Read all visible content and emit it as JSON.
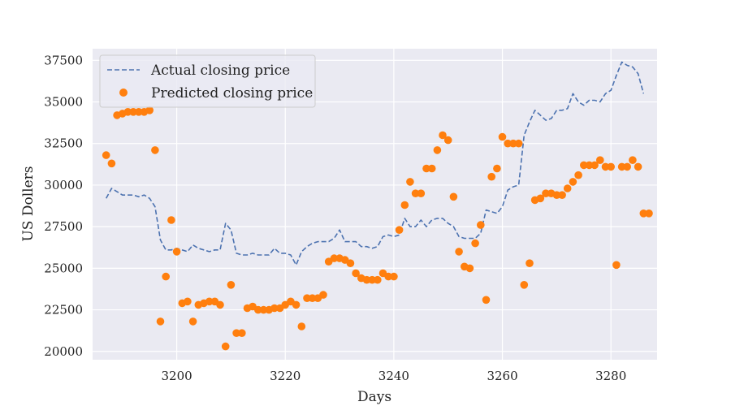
{
  "chart_data": {
    "type": "line",
    "title": "",
    "xlabel": "Days",
    "ylabel": "US Dollers",
    "xlim": [
      3184.5,
      3288.5
    ],
    "ylim": [
      19500,
      38200
    ],
    "xticks": [
      3200,
      3220,
      3240,
      3260,
      3280
    ],
    "yticks": [
      20000,
      22500,
      25000,
      27500,
      30000,
      32500,
      35000,
      37500
    ],
    "grid": true,
    "legend_position": "upper left",
    "background_color": "#eaeaf2",
    "series": [
      {
        "name": "Actual closing price",
        "style": "dashed-line",
        "color": "#4c72b0",
        "x": [
          3187,
          3188,
          3189,
          3190,
          3191,
          3192,
          3193,
          3194,
          3195,
          3196,
          3197,
          3198,
          3199,
          3200,
          3201,
          3202,
          3203,
          3204,
          3205,
          3206,
          3207,
          3208,
          3209,
          3210,
          3211,
          3212,
          3213,
          3214,
          3215,
          3216,
          3217,
          3218,
          3219,
          3220,
          3221,
          3222,
          3223,
          3224,
          3225,
          3226,
          3227,
          3228,
          3229,
          3230,
          3231,
          3232,
          3233,
          3234,
          3235,
          3236,
          3237,
          3238,
          3239,
          3240,
          3241,
          3242,
          3243,
          3244,
          3245,
          3246,
          3247,
          3248,
          3249,
          3250,
          3251,
          3252,
          3253,
          3254,
          3255,
          3256,
          3257,
          3258,
          3259,
          3260,
          3261,
          3262,
          3263,
          3264,
          3265,
          3266,
          3267,
          3268,
          3269,
          3270,
          3271,
          3272,
          3273,
          3274,
          3275,
          3276,
          3277,
          3278,
          3279,
          3280,
          3281,
          3282,
          3283,
          3284,
          3285,
          3286
        ],
        "y": [
          29200,
          29800,
          29600,
          29400,
          29400,
          29400,
          29300,
          29400,
          29200,
          28700,
          26700,
          26100,
          26100,
          26200,
          26100,
          26000,
          26400,
          26200,
          26100,
          26000,
          26100,
          26100,
          27700,
          27300,
          25900,
          25800,
          25800,
          25900,
          25800,
          25800,
          25800,
          26200,
          25900,
          25900,
          25800,
          25200,
          26000,
          26300,
          26500,
          26600,
          26600,
          26600,
          26800,
          27300,
          26600,
          26600,
          26600,
          26300,
          26300,
          26200,
          26300,
          26900,
          27000,
          26900,
          27000,
          28000,
          27500,
          27500,
          27900,
          27500,
          27900,
          28000,
          28000,
          27700,
          27500,
          26900,
          26800,
          26800,
          26800,
          27100,
          28500,
          28400,
          28300,
          28700,
          29700,
          29900,
          30000,
          33000,
          33800,
          34500,
          34200,
          33900,
          34000,
          34500,
          34500,
          34600,
          35500,
          35000,
          34800,
          35100,
          35100,
          35000,
          35500,
          35700,
          36600,
          37400,
          37200,
          37100,
          36700,
          35500
        ]
      },
      {
        "name": "Predicted closing price",
        "style": "scatter",
        "color": "#ff7f0e",
        "x": [
          3187,
          3188,
          3189,
          3190,
          3191,
          3192,
          3193,
          3194,
          3195,
          3196,
          3197,
          3198,
          3199,
          3200,
          3201,
          3202,
          3203,
          3204,
          3205,
          3206,
          3207,
          3208,
          3209,
          3210,
          3211,
          3212,
          3213,
          3214,
          3215,
          3216,
          3217,
          3218,
          3219,
          3220,
          3221,
          3222,
          3223,
          3224,
          3225,
          3226,
          3227,
          3228,
          3229,
          3230,
          3231,
          3232,
          3233,
          3234,
          3235,
          3236,
          3237,
          3238,
          3239,
          3240,
          3241,
          3242,
          3243,
          3244,
          3245,
          3246,
          3247,
          3248,
          3249,
          3250,
          3251,
          3252,
          3253,
          3254,
          3255,
          3256,
          3257,
          3258,
          3259,
          3260,
          3261,
          3262,
          3263,
          3264,
          3265,
          3266,
          3267,
          3268,
          3269,
          3270,
          3271,
          3272,
          3273,
          3274,
          3275,
          3276,
          3277,
          3278,
          3279,
          3280,
          3281,
          3282,
          3283,
          3284,
          3285,
          3286,
          3287
        ],
        "y": [
          31800,
          31300,
          34200,
          34300,
          34400,
          34400,
          34400,
          34400,
          34500,
          32100,
          21800,
          24500,
          27900,
          26000,
          22900,
          23000,
          21800,
          22800,
          22900,
          23000,
          23000,
          22800,
          20300,
          24000,
          21100,
          21100,
          22600,
          22700,
          22500,
          22500,
          22500,
          22600,
          22600,
          22800,
          23000,
          22800,
          21500,
          23200,
          23200,
          23200,
          23400,
          25400,
          25600,
          25600,
          25500,
          25300,
          24700,
          24400,
          24300,
          24300,
          24300,
          24700,
          24500,
          24500,
          27300,
          28800,
          30200,
          29500,
          29500,
          31000,
          31000,
          32100,
          33000,
          32700,
          29300,
          26000,
          25100,
          25000,
          26500,
          27600,
          23100,
          30500,
          31000,
          32900,
          32500,
          32500,
          32500,
          24000,
          25300,
          29100,
          29200,
          29500,
          29500,
          29400,
          29400,
          29800,
          30200,
          30600,
          31200,
          31200,
          31200,
          31500,
          31100,
          31100,
          25200,
          31100,
          31100,
          31500,
          31100,
          28300,
          28300
        ]
      }
    ]
  }
}
